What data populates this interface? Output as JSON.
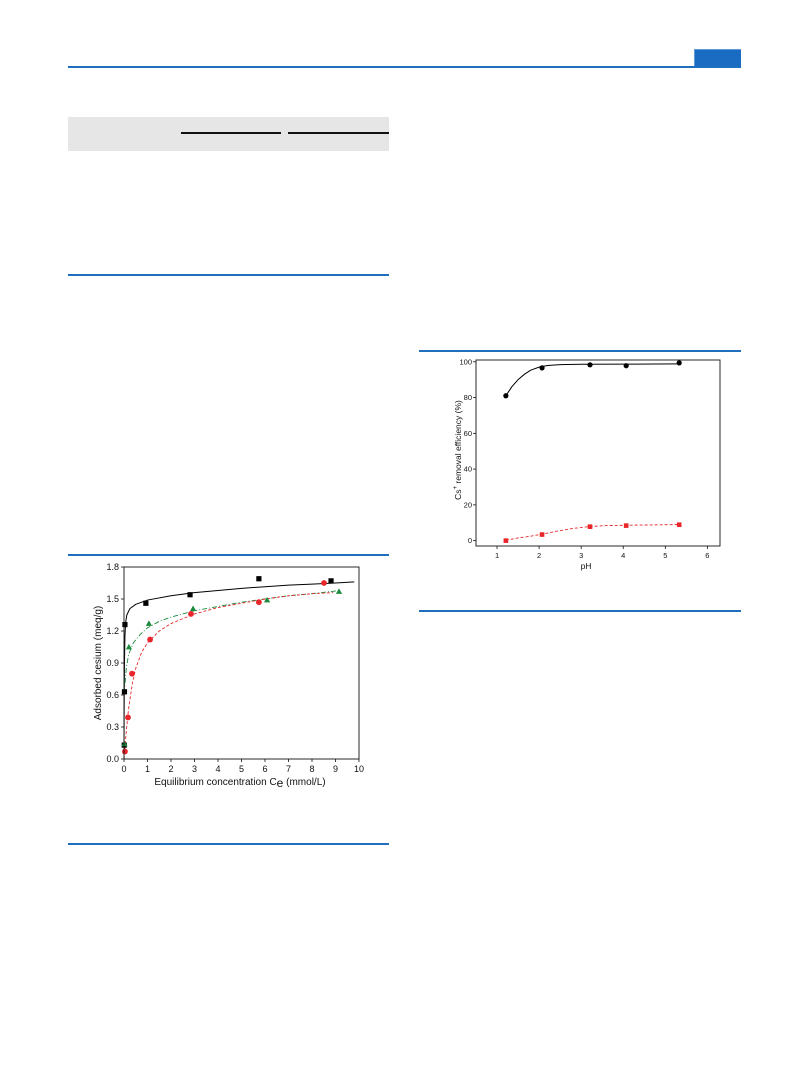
{
  "page": {
    "rule_color": "#1f6fbf",
    "tab_color": "#1a6cc2",
    "band_color": "#e6e6e6"
  },
  "chart_data": [
    {
      "type": "scatter",
      "xlabel": "Equilibrium concentration C",
      "xlabel_sub": "e",
      "xlabel_tail": " (mmol/L)",
      "ylabel": "Adsorbed cesium (meq/g)",
      "xlim": [
        0,
        10
      ],
      "ylim": [
        0,
        1.8
      ],
      "xticks": [
        "0",
        "1",
        "2",
        "3",
        "4",
        "5",
        "6",
        "7",
        "8",
        "9",
        "10"
      ],
      "yticks": [
        "0.0",
        "0.3",
        "0.6",
        "0.9",
        "1.2",
        "1.5",
        "1.8"
      ],
      "grid": false,
      "series": [
        {
          "marker": "square",
          "color": "#000000",
          "points": [
            [
              0.01,
              0.13
            ],
            [
              0.02,
              0.63
            ],
            [
              0.04,
              1.26
            ],
            [
              0.93,
              1.46
            ],
            [
              2.81,
              1.54
            ],
            [
              5.74,
              1.69
            ],
            [
              8.81,
              1.67
            ]
          ]
        },
        {
          "marker": "triangle",
          "color": "#1b8a3c",
          "points": [
            [
              0.02,
              0.14
            ],
            [
              0.21,
              1.05
            ],
            [
              1.06,
              1.27
            ],
            [
              2.94,
              1.41
            ],
            [
              6.09,
              1.49
            ],
            [
              9.15,
              1.57
            ]
          ]
        },
        {
          "marker": "circle",
          "color": "#e8262b",
          "points": [
            [
              0.04,
              0.07
            ],
            [
              0.17,
              0.39
            ],
            [
              0.34,
              0.8
            ],
            [
              1.11,
              1.12
            ],
            [
              2.85,
              1.36
            ],
            [
              5.74,
              1.47
            ],
            [
              8.51,
              1.65
            ]
          ]
        }
      ],
      "fits": [
        {
          "color": "#000000",
          "style": "solid",
          "points": [
            [
              0,
              0.12
            ],
            [
              0.01,
              0.6
            ],
            [
              0.02,
              0.9
            ],
            [
              0.04,
              1.15
            ],
            [
              0.07,
              1.28
            ],
            [
              0.12,
              1.35
            ],
            [
              0.25,
              1.41
            ],
            [
              0.5,
              1.45
            ],
            [
              1,
              1.49
            ],
            [
              2,
              1.53
            ],
            [
              3,
              1.56
            ],
            [
              4,
              1.58
            ],
            [
              5,
              1.6
            ],
            [
              6,
              1.615
            ],
            [
              7,
              1.63
            ],
            [
              8,
              1.64
            ],
            [
              9,
              1.65
            ],
            [
              9.8,
              1.66
            ]
          ]
        },
        {
          "color": "#1b8a3c",
          "style": "dashdot",
          "points": [
            [
              0.01,
              0.62
            ],
            [
              0.1,
              0.86
            ],
            [
              0.2,
              0.98
            ],
            [
              0.4,
              1.09
            ],
            [
              0.7,
              1.17
            ],
            [
              1,
              1.23
            ],
            [
              1.5,
              1.29
            ],
            [
              2,
              1.33
            ],
            [
              3,
              1.39
            ],
            [
              4,
              1.43
            ],
            [
              5,
              1.47
            ],
            [
              6,
              1.5
            ],
            [
              7,
              1.53
            ],
            [
              8,
              1.55
            ],
            [
              9.2,
              1.58
            ]
          ]
        },
        {
          "color": "#e8262b",
          "style": "dashed",
          "points": [
            [
              0,
              0.0
            ],
            [
              0.05,
              0.14
            ],
            [
              0.1,
              0.27
            ],
            [
              0.2,
              0.48
            ],
            [
              0.35,
              0.7
            ],
            [
              0.5,
              0.85
            ],
            [
              0.75,
              1.0
            ],
            [
              1,
              1.09
            ],
            [
              1.5,
              1.2
            ],
            [
              2,
              1.27
            ],
            [
              3,
              1.36
            ],
            [
              4,
              1.42
            ],
            [
              5,
              1.46
            ],
            [
              6,
              1.5
            ],
            [
              7,
              1.53
            ],
            [
              8,
              1.55
            ],
            [
              8.9,
              1.56
            ]
          ]
        }
      ]
    },
    {
      "type": "scatter",
      "xlabel": "pH",
      "ylabel": "Cs",
      "ylabel_sup": "+",
      "ylabel_tail": " removal efficiency (%)",
      "xlim": [
        0.5,
        6.3
      ],
      "ylim": [
        -3,
        101
      ],
      "xticks": [
        "1",
        "2",
        "3",
        "4",
        "5",
        "6"
      ],
      "yticks": [
        "0",
        "20",
        "40",
        "60",
        "80",
        "100"
      ],
      "grid": false,
      "series": [
        {
          "marker": "circle",
          "color": "#000000",
          "points": [
            [
              1.21,
              81
            ],
            [
              2.07,
              96.6
            ],
            [
              3.21,
              98.3
            ],
            [
              4.07,
              97.8
            ],
            [
              5.33,
              99.4
            ]
          ]
        },
        {
          "marker": "square",
          "color": "#e8262b",
          "points": [
            [
              1.21,
              0
            ],
            [
              2.07,
              3.4
            ],
            [
              3.21,
              7.8
            ],
            [
              4.07,
              8.4
            ],
            [
              5.33,
              8.9
            ]
          ]
        }
      ],
      "fits": [
        {
          "color": "#000000",
          "style": "solid",
          "points": [
            [
              1.21,
              81
            ],
            [
              1.35,
              86
            ],
            [
              1.5,
              90
            ],
            [
              1.65,
              93
            ],
            [
              1.8,
              95.3
            ],
            [
              2.0,
              97
            ],
            [
              2.2,
              97.9
            ],
            [
              2.5,
              98.4
            ],
            [
              3,
              98.6
            ],
            [
              4,
              98.7
            ],
            [
              5.33,
              98.8
            ]
          ]
        },
        {
          "color": "#e8262b",
          "style": "dashed",
          "points": [
            [
              1.21,
              0.2
            ],
            [
              1.5,
              1.5
            ],
            [
              1.8,
              2.5
            ],
            [
              2.07,
              3.6
            ],
            [
              2.4,
              5.2
            ],
            [
              2.8,
              6.8
            ],
            [
              3.21,
              7.9
            ],
            [
              3.6,
              8.4
            ],
            [
              4.07,
              8.6
            ],
            [
              4.7,
              8.8
            ],
            [
              5.33,
              9.0
            ]
          ]
        }
      ]
    }
  ]
}
